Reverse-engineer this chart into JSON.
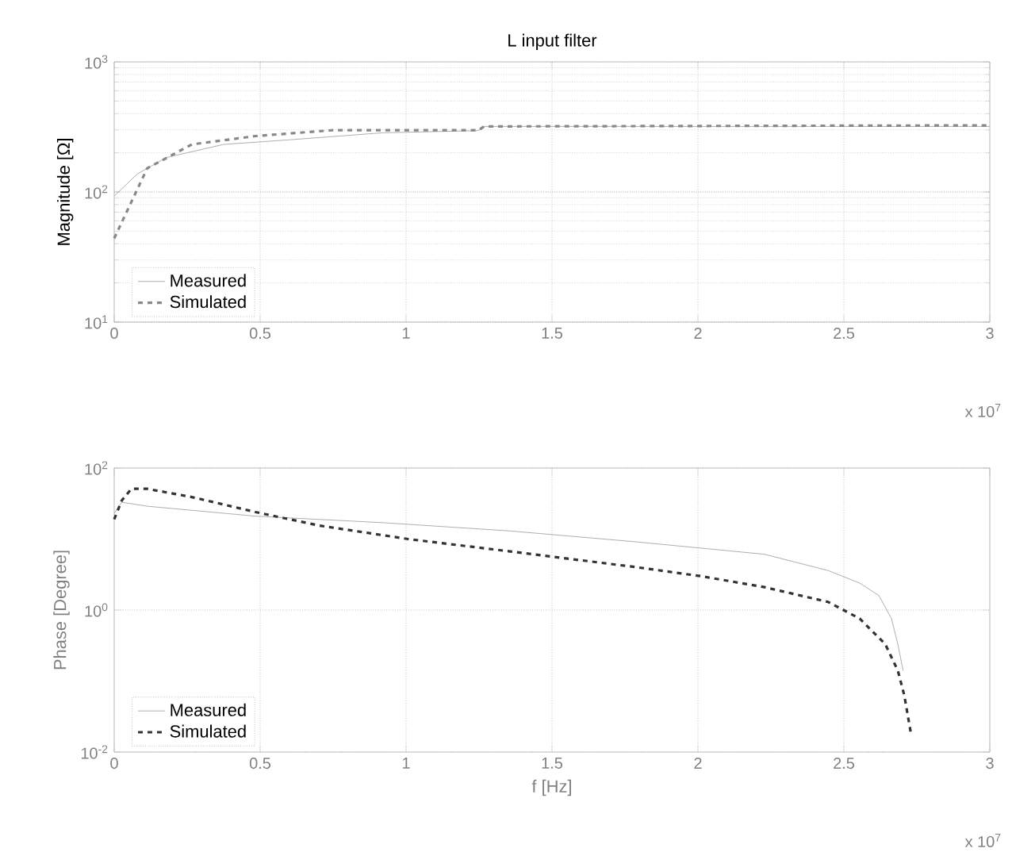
{
  "chart_data": [
    {
      "type": "line",
      "title": "L input filter",
      "ylabel": "Magnitude [Ω]",
      "log": "y",
      "grid": true,
      "legend": "bottom left",
      "xlim": [
        0,
        3
      ],
      "xticks": [
        0,
        0.5,
        1,
        1.5,
        2,
        2.5,
        3
      ],
      "ylim": [
        10,
        1000
      ],
      "yticks": [
        {
          "value": 10,
          "label": "10$^{1}$"
        },
        {
          "value": 100,
          "label": "10$^{2}$"
        },
        {
          "value": 1000,
          "label": "10$^{3}$"
        }
      ],
      "annotations": [
        "x 10$^{7}$"
      ],
      "series": [
        {
          "name": "Measured",
          "color": "#999999",
          "line_style": "solid",
          "x": [
            0,
            0.08,
            0.179,
            0.375,
            0.593,
            0.92,
            1.247,
            1.268,
            3
          ],
          "values": [
            93,
            138,
            184,
            232,
            251,
            285,
            296,
            319,
            319
          ]
        },
        {
          "name": "Simulated",
          "color": "#888888",
          "line_style": "dashed",
          "x": [
            0,
            0.113,
            0.266,
            0.484,
            0.745,
            1.247,
            1.268,
            3
          ],
          "values": [
            44,
            152,
            232,
            269,
            298,
            298,
            319,
            325
          ]
        }
      ]
    },
    {
      "type": "line",
      "xlabel": "f [Hz]",
      "ylabel": "Phase [Degree]",
      "log": "y",
      "grid": true,
      "legend": "bottom left",
      "xlim": [
        0,
        3
      ],
      "xticks": [
        0,
        0.5,
        1,
        1.5,
        2,
        2.5,
        3
      ],
      "ylim": [
        0.01,
        100
      ],
      "yticks": [
        {
          "value": 0.01,
          "label": "10$^{-2}$"
        },
        {
          "value": 1,
          "label": "10$^{0}$"
        },
        {
          "value": 100,
          "label": "10$^{2}$"
        }
      ],
      "annotations": [
        "x 10$^{7}$"
      ],
      "series": [
        {
          "name": "Measured",
          "color": "#999999",
          "line_style": "solid",
          "x": [
            0,
            0.026,
            0.113,
            0.484,
            0.92,
            1.356,
            1.792,
            2.228,
            2.446,
            2.554,
            2.62,
            2.663,
            2.685,
            2.703
          ],
          "values": [
            23,
            33,
            29,
            21,
            17,
            13,
            9.1,
            6.1,
            3.6,
            2.4,
            1.6,
            0.76,
            0.33,
            0.14
          ]
        },
        {
          "name": "Simulated",
          "color": "#333333",
          "line_style": "dashed",
          "x": [
            0,
            0.026,
            0.059,
            0.113,
            0.266,
            0.484,
            0.702,
            1.007,
            1.356,
            1.792,
            2.01,
            2.228,
            2.446,
            2.554,
            2.642,
            2.685,
            2.707,
            2.729
          ],
          "values": [
            19,
            35,
            51,
            51,
            39,
            24,
            15.5,
            10,
            6.7,
            4,
            3,
            2.1,
            1.3,
            0.76,
            0.33,
            0.14,
            0.063,
            0.019
          ]
        }
      ]
    }
  ]
}
